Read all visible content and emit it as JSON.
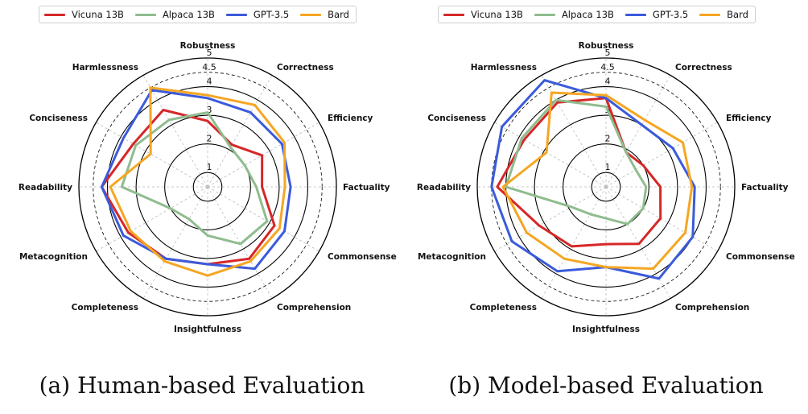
{
  "colors": {
    "vicuna": "#d62728",
    "alpaca": "#8fbc8f",
    "gpt35": "#3b5bdb",
    "bard": "#f5a623"
  },
  "chart_data": [
    {
      "type": "radar",
      "caption": "(a) Human-based Evaluation",
      "axes": [
        "Robustness",
        "Correctness",
        "Efficiency",
        "Factuality",
        "Commonsense",
        "Comprehension",
        "Insightfulness",
        "Completeness",
        "Metacognition",
        "Readability",
        "Conciseness",
        "Harmlessness"
      ],
      "rticks": [
        "1",
        "2",
        "3",
        "4",
        "4.5",
        "5"
      ],
      "rlim": [
        0.5,
        5
      ],
      "series": [
        {
          "name": "Vicuna 13B",
          "color": "#d62728",
          "values": [
            2.8,
            2.2,
            2.7,
            2.4,
            3.2,
            3.4,
            3.2,
            3.4,
            3.7,
            4.2,
            3.5,
            3.6
          ]
        },
        {
          "name": "Alpaca 13B",
          "color": "#8fbc8f",
          "values": [
            3.1,
            2.1,
            2.0,
            2.2,
            2.9,
            2.8,
            2.2,
            1.8,
            2.0,
            3.5,
            3.4,
            3.2
          ]
        },
        {
          "name": "GPT-3.5",
          "color": "#3b5bdb",
          "values": [
            3.6,
            3.5,
            3.5,
            3.4,
            3.6,
            3.8,
            3.2,
            3.4,
            3.9,
            4.2,
            3.9,
            4.4
          ]
        },
        {
          "name": "Bard",
          "color": "#f5a623",
          "values": [
            3.7,
            3.8,
            3.6,
            3.2,
            3.4,
            3.5,
            3.6,
            3.5,
            3.6,
            3.9,
            2.8,
            4.5
          ]
        }
      ]
    },
    {
      "type": "radar",
      "caption": "(b) Model-based Evaluation",
      "axes": [
        "Robustness",
        "Correctness",
        "Efficiency",
        "Factuality",
        "Commonsense",
        "Comprehension",
        "Insightfulness",
        "Completeness",
        "Metacognition",
        "Readability",
        "Conciseness",
        "Harmlessness"
      ],
      "rticks": [
        "1",
        "2",
        "3",
        "4",
        "4.5",
        "5"
      ],
      "rlim": [
        0.5,
        5
      ],
      "series": [
        {
          "name": "Vicuna 13B",
          "color": "#d62728",
          "values": [
            3.6,
            1.9,
            2.0,
            2.4,
            2.7,
            2.8,
            2.5,
            2.9,
            3.2,
            4.3,
            3.8,
            3.9
          ]
        },
        {
          "name": "Alpaca 13B",
          "color": "#8fbc8f",
          "values": [
            3.3,
            1.9,
            1.7,
            1.9,
            2.0,
            2.0,
            1.6,
            1.6,
            1.9,
            4.0,
            3.9,
            4.0
          ]
        },
        {
          "name": "GPT-3.5",
          "color": "#3b5bdb",
          "values": [
            3.6,
            3.0,
            3.2,
            3.6,
            4.0,
            4.2,
            3.3,
            3.9,
            4.3,
            4.5,
            4.7,
            4.8
          ]
        },
        {
          "name": "Bard",
          "color": "#f5a623",
          "values": [
            3.7,
            3.2,
            3.6,
            3.5,
            3.7,
            3.8,
            3.3,
            3.4,
            3.7,
            4.1,
            2.9,
            4.3
          ]
        }
      ]
    }
  ]
}
